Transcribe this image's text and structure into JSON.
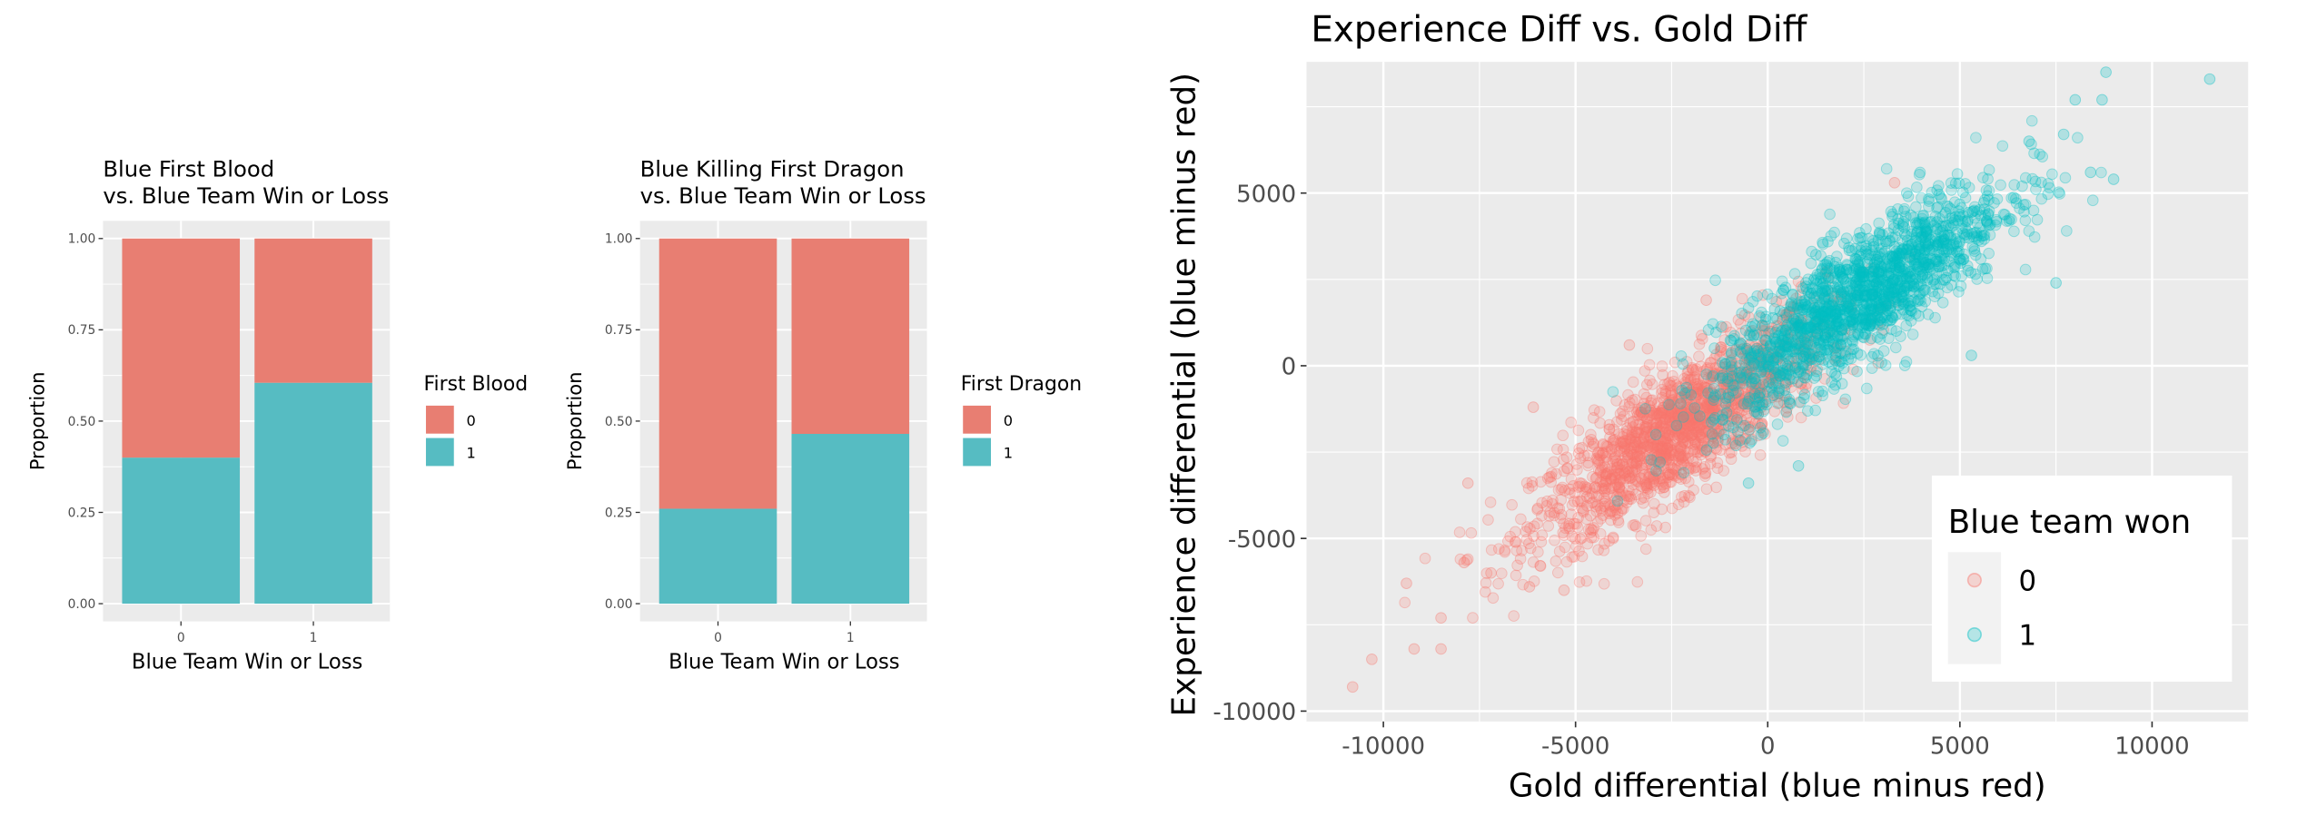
{
  "chart_data": [
    {
      "type": "bar",
      "stacked": true,
      "title": [
        "Blue First Blood",
        "vs. Blue Team Win or Loss"
      ],
      "xlabel": "Blue Team Win or Loss",
      "ylabel": "Proportion",
      "categories": [
        "0",
        "1"
      ],
      "yticks": [
        "0.00",
        "0.25",
        "0.50",
        "0.75",
        "1.00"
      ],
      "ylim": [
        0,
        1
      ],
      "legend": {
        "title": "First Blood",
        "placement": "right"
      },
      "series": [
        {
          "name": "0",
          "color": "#E87E72",
          "values": [
            0.6,
            0.395
          ]
        },
        {
          "name": "1",
          "color": "#56BCC2",
          "values": [
            0.4,
            0.605
          ]
        }
      ]
    },
    {
      "type": "bar",
      "stacked": true,
      "title": [
        "Blue Killing First Dragon",
        "vs. Blue Team Win or Loss"
      ],
      "xlabel": "Blue Team Win or Loss",
      "ylabel": "Proportion",
      "categories": [
        "0",
        "1"
      ],
      "yticks": [
        "0.00",
        "0.25",
        "0.50",
        "0.75",
        "1.00"
      ],
      "ylim": [
        0,
        1
      ],
      "legend": {
        "title": "First Dragon",
        "placement": "right"
      },
      "series": [
        {
          "name": "0",
          "color": "#E87E72",
          "values": [
            0.74,
            0.535
          ]
        },
        {
          "name": "1",
          "color": "#56BCC2",
          "values": [
            0.26,
            0.465
          ]
        }
      ]
    },
    {
      "type": "scatter",
      "title": "Experience Diff vs. Gold Diff",
      "xlabel": "Gold differential (blue minus red)",
      "ylabel": "Experience differential (blue minus red)",
      "xlim": [
        -12000,
        12500
      ],
      "ylim": [
        -10300,
        8800
      ],
      "xticks": [
        -10000,
        -5000,
        0,
        5000,
        10000
      ],
      "yticks": [
        -10000,
        -5000,
        0,
        5000
      ],
      "xtick_labels": [
        "-10000",
        "-5000",
        "0",
        "5000",
        "10000"
      ],
      "ytick_labels": [
        "-10000",
        "-5000",
        "0",
        "5000"
      ],
      "grid": true,
      "legend": {
        "title": "Blue team won",
        "placement": "bottom-right"
      },
      "series": [
        {
          "name": "0",
          "color": "#F8766D",
          "cloud": {
            "n": 1600,
            "mean_x": -2300,
            "sd_x": 1900,
            "slope": 0.72,
            "intercept": -200,
            "resid_sd": 900
          },
          "points": [
            [
              -10800,
              -9300
            ],
            [
              -10300,
              -8500
            ],
            [
              -9400,
              -6300
            ],
            [
              -9200,
              -8200
            ],
            [
              -8500,
              -7300
            ],
            [
              -8500,
              -8200
            ],
            [
              -7900,
              -5700
            ],
            [
              -7800,
              -3400
            ],
            [
              -6100,
              -1200
            ],
            [
              -3600,
              600
            ],
            [
              -1600,
              1900
            ],
            [
              3300,
              5300
            ],
            [
              -6200,
              -6400
            ],
            [
              -7200,
              -6000
            ],
            [
              -5300,
              -6500
            ]
          ]
        },
        {
          "name": "1",
          "color": "#00BFC4",
          "cloud": {
            "n": 1600,
            "mean_x": 2400,
            "sd_x": 1900,
            "slope": 0.72,
            "intercept": 250,
            "resid_sd": 900
          },
          "points": [
            [
              11500,
              8300
            ],
            [
              8800,
              8500
            ],
            [
              8000,
              7700
            ],
            [
              8700,
              7700
            ],
            [
              9000,
              5400
            ],
            [
              8400,
              5600
            ],
            [
              7500,
              2400
            ],
            [
              5300,
              300
            ],
            [
              -500,
              -3400
            ],
            [
              800,
              -2900
            ],
            [
              6800,
              6500
            ],
            [
              7700,
              6700
            ]
          ]
        }
      ]
    }
  ]
}
